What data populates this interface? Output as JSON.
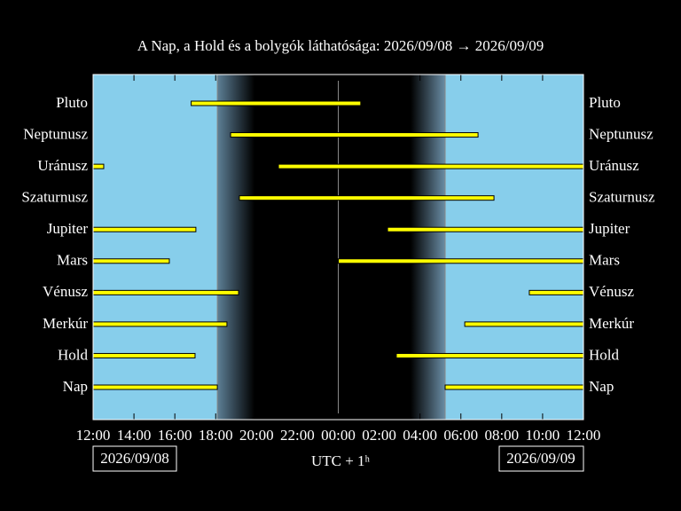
{
  "chart_data": {
    "type": "timeline",
    "title": "A Nap, a Hold és a bolygók láthatósága: 2026/09/08 → 2026/09/09",
    "xlabel": "UTC + 1ʰ",
    "date_left": "2026/09/08",
    "date_right": "2026/09/09",
    "xlim": [
      0,
      24
    ],
    "xticks": [
      {
        "value": 0,
        "label": "12:00"
      },
      {
        "value": 2,
        "label": "14:00"
      },
      {
        "value": 4,
        "label": "16:00"
      },
      {
        "value": 6,
        "label": "18:00"
      },
      {
        "value": 8,
        "label": "20:00"
      },
      {
        "value": 10,
        "label": "22:00"
      },
      {
        "value": 12,
        "label": "00:00"
      },
      {
        "value": 14,
        "label": "02:00"
      },
      {
        "value": 16,
        "label": "04:00"
      },
      {
        "value": 18,
        "label": "06:00"
      },
      {
        "value": 20,
        "label": "08:00"
      },
      {
        "value": 22,
        "label": "10:00"
      },
      {
        "value": 24,
        "label": "12:00"
      }
    ],
    "sky_color": "#87ceeb",
    "bar_color": "#ffff00",
    "sunset": 6.08,
    "midnight": 12,
    "sunrise": 17.23,
    "twilight": [
      [
        6.08,
        7.9
      ],
      [
        15.54,
        17.23
      ]
    ],
    "series": [
      {
        "name": "Pluto",
        "values": [
          [
            4.8,
            13.1
          ]
        ]
      },
      {
        "name": "Neptunusz",
        "values": [
          [
            6.73,
            18.84
          ]
        ]
      },
      {
        "name": "Uránusz",
        "values": [
          [
            0,
            0.52
          ],
          [
            9.07,
            24
          ]
        ]
      },
      {
        "name": "Szaturnusz",
        "values": [
          [
            7.16,
            19.62
          ]
        ]
      },
      {
        "name": "Jupiter",
        "values": [
          [
            0,
            5.03
          ],
          [
            14.41,
            24
          ]
        ]
      },
      {
        "name": "Mars",
        "values": [
          [
            0,
            3.73
          ],
          [
            12.0,
            24
          ]
        ]
      },
      {
        "name": "Vénusz",
        "values": [
          [
            0,
            7.12
          ],
          [
            21.35,
            24
          ]
        ]
      },
      {
        "name": "Merkúr",
        "values": [
          [
            0,
            6.55
          ],
          [
            18.19,
            24
          ]
        ]
      },
      {
        "name": "Hold",
        "values": [
          [
            0,
            4.99
          ],
          [
            14.84,
            24
          ]
        ]
      },
      {
        "name": "Nap",
        "values": [
          [
            0,
            6.08
          ],
          [
            17.23,
            24
          ]
        ]
      }
    ]
  }
}
